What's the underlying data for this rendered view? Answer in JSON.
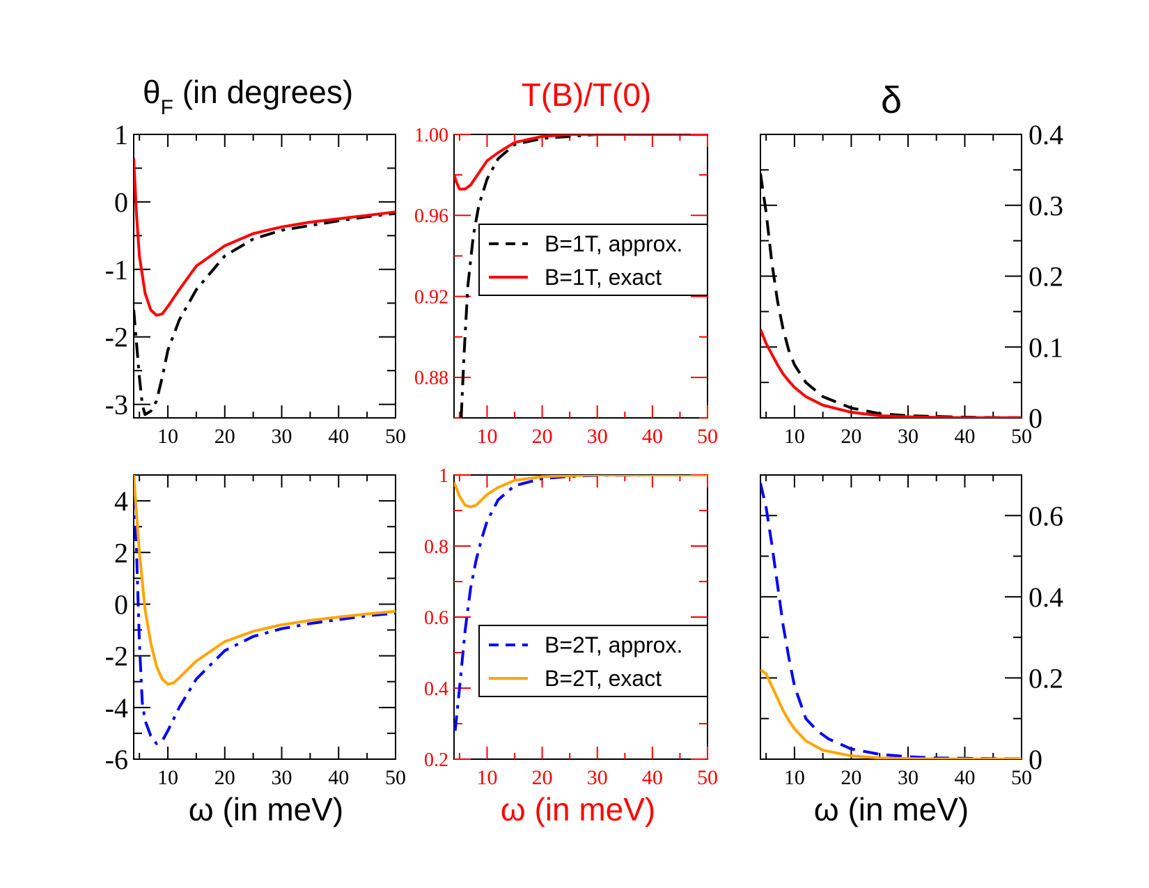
{
  "colors": {
    "black": "#000000",
    "red": "#ff0000",
    "blue": "#0000ff",
    "orange": "#ffa500",
    "white": "#ffffff"
  },
  "titles": {
    "theta_main": "θ",
    "theta_sub": "F",
    "theta_rest": " (in degrees)",
    "transmission": "T(B)/T(0)",
    "delta": "δ"
  },
  "xlabels": {
    "left": "ω (in meV)",
    "middle": "ω (in meV)",
    "right": "ω (in meV)"
  },
  "chart_data": [
    {
      "id": "theta_B1",
      "type": "line",
      "title": "θF (in degrees)",
      "xlabel": "",
      "ylabel": "",
      "xlim": [
        4,
        50
      ],
      "ylim": [
        -3.2,
        1
      ],
      "xticks": [
        10,
        20,
        30,
        40,
        50
      ],
      "xticklabels": [
        "10",
        "20",
        "30",
        "40",
        "50"
      ],
      "yticks": [
        1,
        0,
        -1,
        -2,
        -3
      ],
      "yticklabels": [
        "1",
        "0",
        "-1",
        "-2",
        "-3"
      ],
      "tick_color": "black",
      "y_axis_side": "left",
      "series": [
        {
          "name": "B=1T, approx.",
          "color": "black",
          "dash": "dashdot",
          "x": [
            4,
            5,
            5.5,
            6,
            7,
            8,
            9,
            10,
            12,
            15,
            20,
            25,
            30,
            35,
            40,
            45,
            50
          ],
          "y": [
            -1.6,
            -2.6,
            -3.0,
            -3.15,
            -3.1,
            -2.95,
            -2.6,
            -2.2,
            -1.75,
            -1.3,
            -0.8,
            -0.55,
            -0.42,
            -0.35,
            -0.28,
            -0.22,
            -0.17
          ]
        },
        {
          "name": "B=1T, exact",
          "color": "red",
          "dash": "solid",
          "x": [
            4,
            4.5,
            5,
            6,
            7,
            8,
            9,
            10,
            12,
            15,
            20,
            25,
            30,
            35,
            40,
            45,
            50
          ],
          "y": [
            0.65,
            -0.2,
            -0.8,
            -1.35,
            -1.6,
            -1.68,
            -1.66,
            -1.55,
            -1.3,
            -0.95,
            -0.65,
            -0.47,
            -0.37,
            -0.3,
            -0.25,
            -0.2,
            -0.15
          ]
        }
      ]
    },
    {
      "id": "T_B1",
      "type": "line",
      "title": "T(B)/T(0)",
      "xlabel": "",
      "ylabel": "",
      "xlim": [
        4,
        50
      ],
      "ylim": [
        0.86,
        1.0
      ],
      "xticks": [
        10,
        20,
        30,
        40,
        50
      ],
      "xticklabels": [
        "10",
        "20",
        "30",
        "40",
        "50"
      ],
      "yticks": [
        1.0,
        0.96,
        0.92,
        0.88
      ],
      "yticklabels": [
        "1.00",
        "0.96",
        "0.92",
        "0.88"
      ],
      "tick_color": "red",
      "y_axis_side": "left",
      "legend": {
        "position": "center-right",
        "entries": [
          "B=1T, approx.",
          "B=1T, exact"
        ]
      },
      "series": [
        {
          "name": "B=1T, approx.",
          "color": "black",
          "dash": "dashdot",
          "x": [
            5.3,
            5.8,
            6.5,
            7.5,
            8.5,
            10,
            12,
            15,
            20,
            25,
            30,
            40,
            50
          ],
          "y": [
            0.86,
            0.89,
            0.925,
            0.95,
            0.965,
            0.978,
            0.988,
            0.995,
            0.998,
            0.999,
            1.0,
            1.0,
            1.0
          ]
        },
        {
          "name": "B=1T, exact",
          "color": "red",
          "dash": "solid",
          "x": [
            4,
            4.5,
            5,
            6,
            7,
            8,
            9,
            10,
            12,
            15,
            20,
            25,
            30,
            40,
            50
          ],
          "y": [
            0.98,
            0.976,
            0.973,
            0.973,
            0.975,
            0.979,
            0.983,
            0.987,
            0.991,
            0.996,
            0.999,
            1.0,
            1.0,
            1.0,
            1.0
          ]
        }
      ]
    },
    {
      "id": "delta_B1",
      "type": "line",
      "title": "δ",
      "xlabel": "",
      "ylabel": "",
      "xlim": [
        4,
        50
      ],
      "ylim": [
        0,
        0.4
      ],
      "xticks": [
        10,
        20,
        30,
        40,
        50
      ],
      "xticklabels": [
        "10",
        "20",
        "30",
        "40",
        "50"
      ],
      "yticks": [
        0.4,
        0.3,
        0.2,
        0.1,
        0
      ],
      "yticklabels": [
        "0.4",
        "0.3",
        "0.2",
        "0.1",
        "0"
      ],
      "tick_color": "black",
      "y_axis_side": "right",
      "series": [
        {
          "name": "B=1T, approx.",
          "color": "black",
          "dash": "dash",
          "x": [
            4,
            5,
            6,
            7,
            8,
            9,
            10,
            12,
            15,
            20,
            25,
            30,
            35,
            40,
            45,
            50
          ],
          "y": [
            0.345,
            0.29,
            0.22,
            0.165,
            0.125,
            0.095,
            0.075,
            0.05,
            0.03,
            0.014,
            0.006,
            0.003,
            0.002,
            0.001,
            0.0005,
            0.0002
          ]
        },
        {
          "name": "B=1T, exact",
          "color": "red",
          "dash": "solid",
          "x": [
            4,
            5,
            6,
            7,
            8,
            9,
            10,
            12,
            15,
            20,
            25,
            30,
            35,
            40,
            45,
            50
          ],
          "y": [
            0.125,
            0.105,
            0.09,
            0.075,
            0.062,
            0.052,
            0.043,
            0.03,
            0.018,
            0.008,
            0.003,
            0.0015,
            0.0007,
            0.0003,
            0.0002,
            0.0001
          ]
        }
      ]
    },
    {
      "id": "theta_B2",
      "type": "line",
      "title": "",
      "xlabel": "ω (in meV)",
      "ylabel": "",
      "xlim": [
        4,
        50
      ],
      "ylim": [
        -6,
        5
      ],
      "xticks": [
        10,
        20,
        30,
        40,
        50
      ],
      "xticklabels": [
        "10",
        "20",
        "30",
        "40",
        "50"
      ],
      "yticks": [
        4,
        2,
        0,
        -2,
        -4,
        -6
      ],
      "yticklabels": [
        "4",
        "2",
        "0",
        "-2",
        "-4",
        "-6"
      ],
      "tick_color": "black",
      "y_axis_side": "left",
      "series": [
        {
          "name": "B=2T, approx.",
          "color": "blue",
          "dash": "dashdot",
          "x": [
            4,
            4.5,
            5,
            5.5,
            6,
            7,
            8,
            9,
            10,
            12,
            15,
            20,
            25,
            30,
            35,
            40,
            45,
            50
          ],
          "y": [
            4.3,
            2.0,
            -1.5,
            -3.8,
            -4.5,
            -5.1,
            -5.4,
            -5.3,
            -4.9,
            -4.0,
            -2.9,
            -1.8,
            -1.25,
            -0.95,
            -0.75,
            -0.6,
            -0.45,
            -0.35
          ]
        },
        {
          "name": "B=2T, exact",
          "color": "orange",
          "dash": "solid",
          "x": [
            4,
            4.5,
            5,
            6,
            7,
            8,
            9,
            10,
            11,
            12,
            15,
            20,
            25,
            30,
            35,
            40,
            45,
            50
          ],
          "y": [
            5.0,
            3.5,
            2.0,
            -0.2,
            -1.5,
            -2.4,
            -2.9,
            -3.1,
            -3.05,
            -2.85,
            -2.2,
            -1.45,
            -1.05,
            -0.8,
            -0.63,
            -0.5,
            -0.38,
            -0.28
          ]
        }
      ]
    },
    {
      "id": "T_B2",
      "type": "line",
      "title": "",
      "xlabel": "ω (in meV)",
      "ylabel": "",
      "xlim": [
        4,
        50
      ],
      "ylim": [
        0.2,
        1.0
      ],
      "xticks": [
        10,
        20,
        30,
        40,
        50
      ],
      "xticklabels": [
        "10",
        "20",
        "30",
        "40",
        "50"
      ],
      "yticks": [
        1.0,
        0.8,
        0.6,
        0.4,
        0.2
      ],
      "yticklabels": [
        "1",
        "0.8",
        "0.6",
        "0.4",
        "0.2"
      ],
      "tick_color": "red",
      "y_axis_side": "left",
      "legend": {
        "position": "lower-right",
        "entries": [
          "B=2T, approx.",
          "B=2T, exact"
        ]
      },
      "series": [
        {
          "name": "B=2T, approx.",
          "color": "blue",
          "dash": "dashdot",
          "x": [
            4.2,
            5,
            6,
            7,
            8,
            9,
            10,
            12,
            15,
            20,
            25,
            30,
            40,
            50
          ],
          "y": [
            0.28,
            0.4,
            0.56,
            0.68,
            0.76,
            0.82,
            0.87,
            0.93,
            0.97,
            0.99,
            0.996,
            0.999,
            1.0,
            1.0
          ]
        },
        {
          "name": "B=2T, exact",
          "color": "orange",
          "dash": "solid",
          "x": [
            4,
            5,
            6,
            7,
            8,
            9,
            10,
            12,
            15,
            20,
            25,
            30,
            40,
            50
          ],
          "y": [
            0.98,
            0.94,
            0.915,
            0.91,
            0.915,
            0.93,
            0.945,
            0.965,
            0.985,
            0.995,
            0.998,
            1.0,
            1.0,
            1.0
          ]
        }
      ]
    },
    {
      "id": "delta_B2",
      "type": "line",
      "title": "",
      "xlabel": "ω (in meV)",
      "ylabel": "",
      "xlim": [
        4,
        50
      ],
      "ylim": [
        0,
        0.7
      ],
      "xticks": [
        10,
        20,
        30,
        40,
        50
      ],
      "xticklabels": [
        "10",
        "20",
        "30",
        "40",
        "50"
      ],
      "yticks": [
        0.6,
        0.4,
        0.2,
        0
      ],
      "yticklabels": [
        "0.6",
        "0.4",
        "0.2",
        "0"
      ],
      "tick_color": "black",
      "y_axis_side": "right",
      "series": [
        {
          "name": "B=2T, approx.",
          "color": "blue",
          "dash": "dash",
          "x": [
            4,
            5,
            6,
            7,
            8,
            9,
            10,
            12,
            14,
            16,
            20,
            25,
            30,
            35,
            40,
            45,
            50
          ],
          "y": [
            0.68,
            0.62,
            0.53,
            0.43,
            0.33,
            0.25,
            0.18,
            0.1,
            0.07,
            0.05,
            0.025,
            0.012,
            0.006,
            0.003,
            0.002,
            0.001,
            0.0005
          ]
        },
        {
          "name": "B=2T, exact",
          "color": "orange",
          "dash": "solid",
          "x": [
            4,
            5,
            6,
            7,
            8,
            9,
            10,
            12,
            15,
            20,
            25,
            30,
            35,
            40,
            45,
            50
          ],
          "y": [
            0.22,
            0.21,
            0.18,
            0.15,
            0.12,
            0.095,
            0.075,
            0.045,
            0.022,
            0.008,
            0.003,
            0.0015,
            0.0007,
            0.0003,
            0.0002,
            0.0001
          ]
        }
      ]
    }
  ]
}
